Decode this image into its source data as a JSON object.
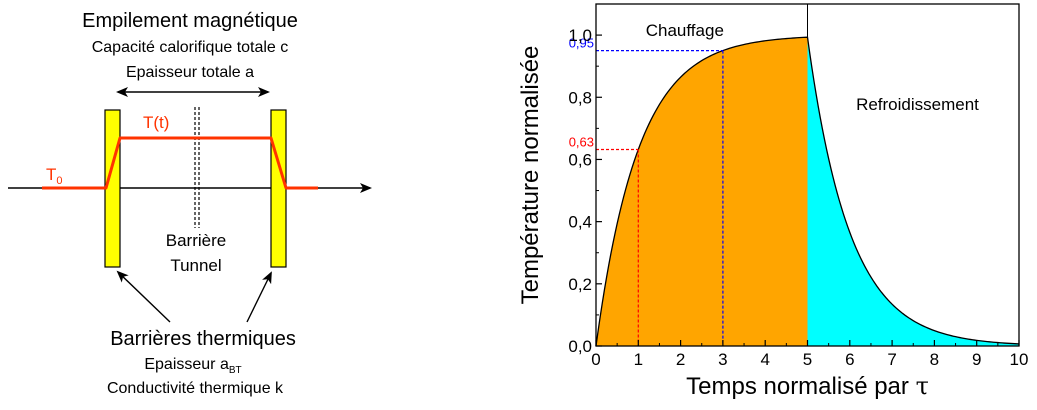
{
  "diagram": {
    "title": "Empilement magnétique",
    "capacity_line": "Capacité calorifique totale c",
    "thickness_line": "Epaisseur totale a",
    "temp_label_main": "T",
    "temp_label_arg": "(t)",
    "t0_main": "T",
    "t0_sub": "0",
    "barrier_tunnel_line1": "Barrière",
    "barrier_tunnel_line2": "Tunnel",
    "thermal_title": "Barrières thermiques",
    "thermal_thickness_main": "Epaisseur a",
    "thermal_thickness_sub": "BT",
    "thermal_conductivity": "Conductivité thermique k",
    "colors": {
      "temperature_line": "#ff3300",
      "barrier_fill": "#ffff00",
      "t0_text": "#ff3300"
    }
  },
  "chart_data": {
    "type": "area",
    "title": "",
    "xlabel_main": "Temps normalisé par ",
    "xlabel_symbol": "τ",
    "ylabel": "Température normalisée",
    "xlim": [
      0,
      10
    ],
    "ylim": [
      0,
      1.1
    ],
    "x_ticks": [
      "0",
      "1",
      "2",
      "3",
      "4",
      "5",
      "6",
      "7",
      "8",
      "9",
      "10"
    ],
    "y_ticks": [
      "0,0",
      "0,2",
      "0,4",
      "0,6",
      "0,8",
      "1,0"
    ],
    "regions": [
      {
        "name": "Chauffage",
        "x_start": 0,
        "x_end": 5,
        "color": "#ffa500"
      },
      {
        "name": "Refroidissement",
        "x_start": 5,
        "x_end": 10,
        "color": "#00ffff"
      }
    ],
    "heating_model": "1 - exp(-t)",
    "cooling_model": "(1 - exp(-5)) * exp(-(t - 5))",
    "markers": [
      {
        "label": "0,63",
        "x": 1,
        "y": 0.632,
        "color": "#ff0000"
      },
      {
        "label": "0,95",
        "x": 3,
        "y": 0.95,
        "color": "#0000ff"
      }
    ],
    "grid": false
  }
}
